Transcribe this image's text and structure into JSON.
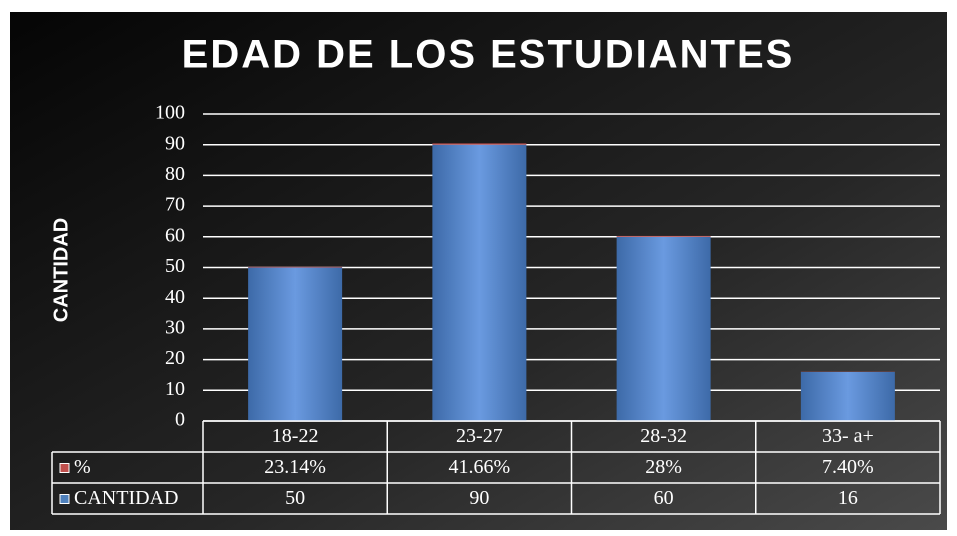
{
  "chart_data": {
    "type": "bar",
    "stacked": true,
    "title": "EDAD DE LOS ESTUDIANTES",
    "y_label": "CANTIDAD",
    "categories": [
      "18-22",
      "23-27",
      "28-32",
      "33- a+"
    ],
    "series": [
      {
        "name": "CANTIDAD",
        "color": "#4f81bd",
        "values": [
          50,
          90,
          60,
          16
        ]
      },
      {
        "name": "%",
        "color": "#c0504d",
        "values": [
          0.2314,
          0.4166,
          0.28,
          0.074
        ],
        "value_labels": [
          "23.14%",
          "41.66%",
          "28%",
          "7.40%"
        ]
      }
    ],
    "ylim": [
      0,
      100
    ],
    "yticks": [
      0,
      10,
      20,
      30,
      40,
      50,
      60,
      70,
      80,
      90,
      100
    ],
    "grid": true,
    "data_table": true
  }
}
